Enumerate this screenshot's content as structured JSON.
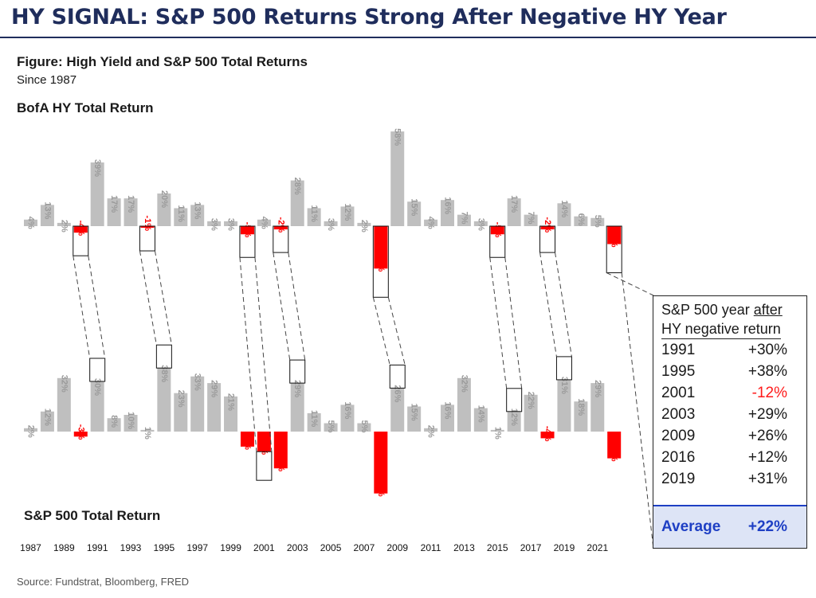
{
  "header": {
    "headline": "HY SIGNAL: S&P 500 Returns Strong After Negative HY Year",
    "figure_title": "Figure: High Yield and S&P 500 Total Returns",
    "figure_subtitle": "Since 1987",
    "source": "Source: Fundstrat, Bloomberg, FRED"
  },
  "chart_data": {
    "type": "bar",
    "colors": {
      "positive": "#bfbfbf",
      "negative": "#ff0000"
    },
    "years": [
      1987,
      1988,
      1989,
      1990,
      1991,
      1992,
      1993,
      1994,
      1995,
      1996,
      1997,
      1998,
      1999,
      2000,
      2001,
      2002,
      2003,
      2004,
      2005,
      2006,
      2007,
      2008,
      2009,
      2010,
      2011,
      2012,
      2013,
      2014,
      2015,
      2016,
      2017,
      2018,
      2019,
      2020,
      2021,
      2022
    ],
    "x_tick_labels": [
      "1987",
      "1989",
      "1991",
      "1993",
      "1995",
      "1997",
      "1999",
      "2001",
      "2003",
      "2005",
      "2007",
      "2009",
      "2011",
      "2013",
      "2015",
      "2017",
      "2019",
      "2021"
    ],
    "series": [
      {
        "name": "BofA HY Total Return",
        "values": [
          4,
          13,
          2,
          -4,
          39,
          17,
          17,
          -1,
          20,
          11,
          13,
          3,
          3,
          -5,
          4,
          -2,
          28,
          11,
          3,
          12,
          2,
          -26,
          58,
          15,
          4,
          16,
          7,
          3,
          -5,
          17,
          7,
          -2,
          14,
          6,
          5,
          -11
        ],
        "labels": [
          "4%",
          "13%",
          "2%",
          "-4%",
          "39%",
          "17%",
          "17%",
          "-1%",
          "20%",
          "11%",
          "13%",
          "3%",
          "3%",
          "-5%",
          "4%",
          "-2%",
          "28%",
          "11%",
          "3%",
          "12%",
          "2%",
          "-26%",
          "58%",
          "15%",
          "4%",
          "16%",
          "7%",
          "3%",
          "-5%",
          "17%",
          "7%",
          "-2%",
          "14%",
          "6%",
          "5%",
          "-11%"
        ]
      },
      {
        "name": "S&P 500 Total Return",
        "values": [
          2,
          12,
          32,
          -3,
          30,
          8,
          10,
          1,
          38,
          23,
          33,
          29,
          21,
          -9,
          -12,
          -22,
          29,
          11,
          5,
          16,
          5,
          -37,
          26,
          15,
          2,
          16,
          32,
          14,
          1,
          12,
          22,
          -4,
          31,
          18,
          29,
          -16
        ],
        "labels": [
          "2%",
          "12%",
          "32%",
          "-3%",
          "30%",
          "8%",
          "10%",
          "1%",
          "38%",
          "23%",
          "33%",
          "29%",
          "21%",
          "-9%",
          "-12%",
          "-22%",
          "29%",
          "11%",
          "5%",
          "16%",
          "5%",
          "-37%",
          "26%",
          "15%",
          "2%",
          "16%",
          "32%",
          "14%",
          "1%",
          "12%",
          "22%",
          "-4%",
          "31%",
          "18%",
          "29%",
          "-16%"
        ]
      }
    ],
    "highlight_pairs": [
      {
        "hy_year": 1990,
        "sp_year": 1991
      },
      {
        "hy_year": 1994,
        "sp_year": 1995
      },
      {
        "hy_year": 2000,
        "sp_year": 2001
      },
      {
        "hy_year": 2002,
        "sp_year": 2003
      },
      {
        "hy_year": 2008,
        "sp_year": 2009
      },
      {
        "hy_year": 2015,
        "sp_year": 2016
      },
      {
        "hy_year": 2018,
        "sp_year": 2019
      }
    ],
    "table": {
      "header_line1": "S&P 500 year ",
      "header_line1_emph": "after",
      "header_line2": "HY negative return",
      "rows": [
        {
          "year": "1991",
          "value": "+30%",
          "negative": false
        },
        {
          "year": "1995",
          "value": "+38%",
          "negative": false
        },
        {
          "year": "2001",
          "value": "-12%",
          "negative": true
        },
        {
          "year": "2003",
          "value": "+29%",
          "negative": false
        },
        {
          "year": "2009",
          "value": "+26%",
          "negative": false
        },
        {
          "year": "2016",
          "value": "+12%",
          "negative": false
        },
        {
          "year": "2019",
          "value": "+31%",
          "negative": false
        }
      ],
      "average_label": "Average",
      "average_value": "+22%"
    }
  }
}
